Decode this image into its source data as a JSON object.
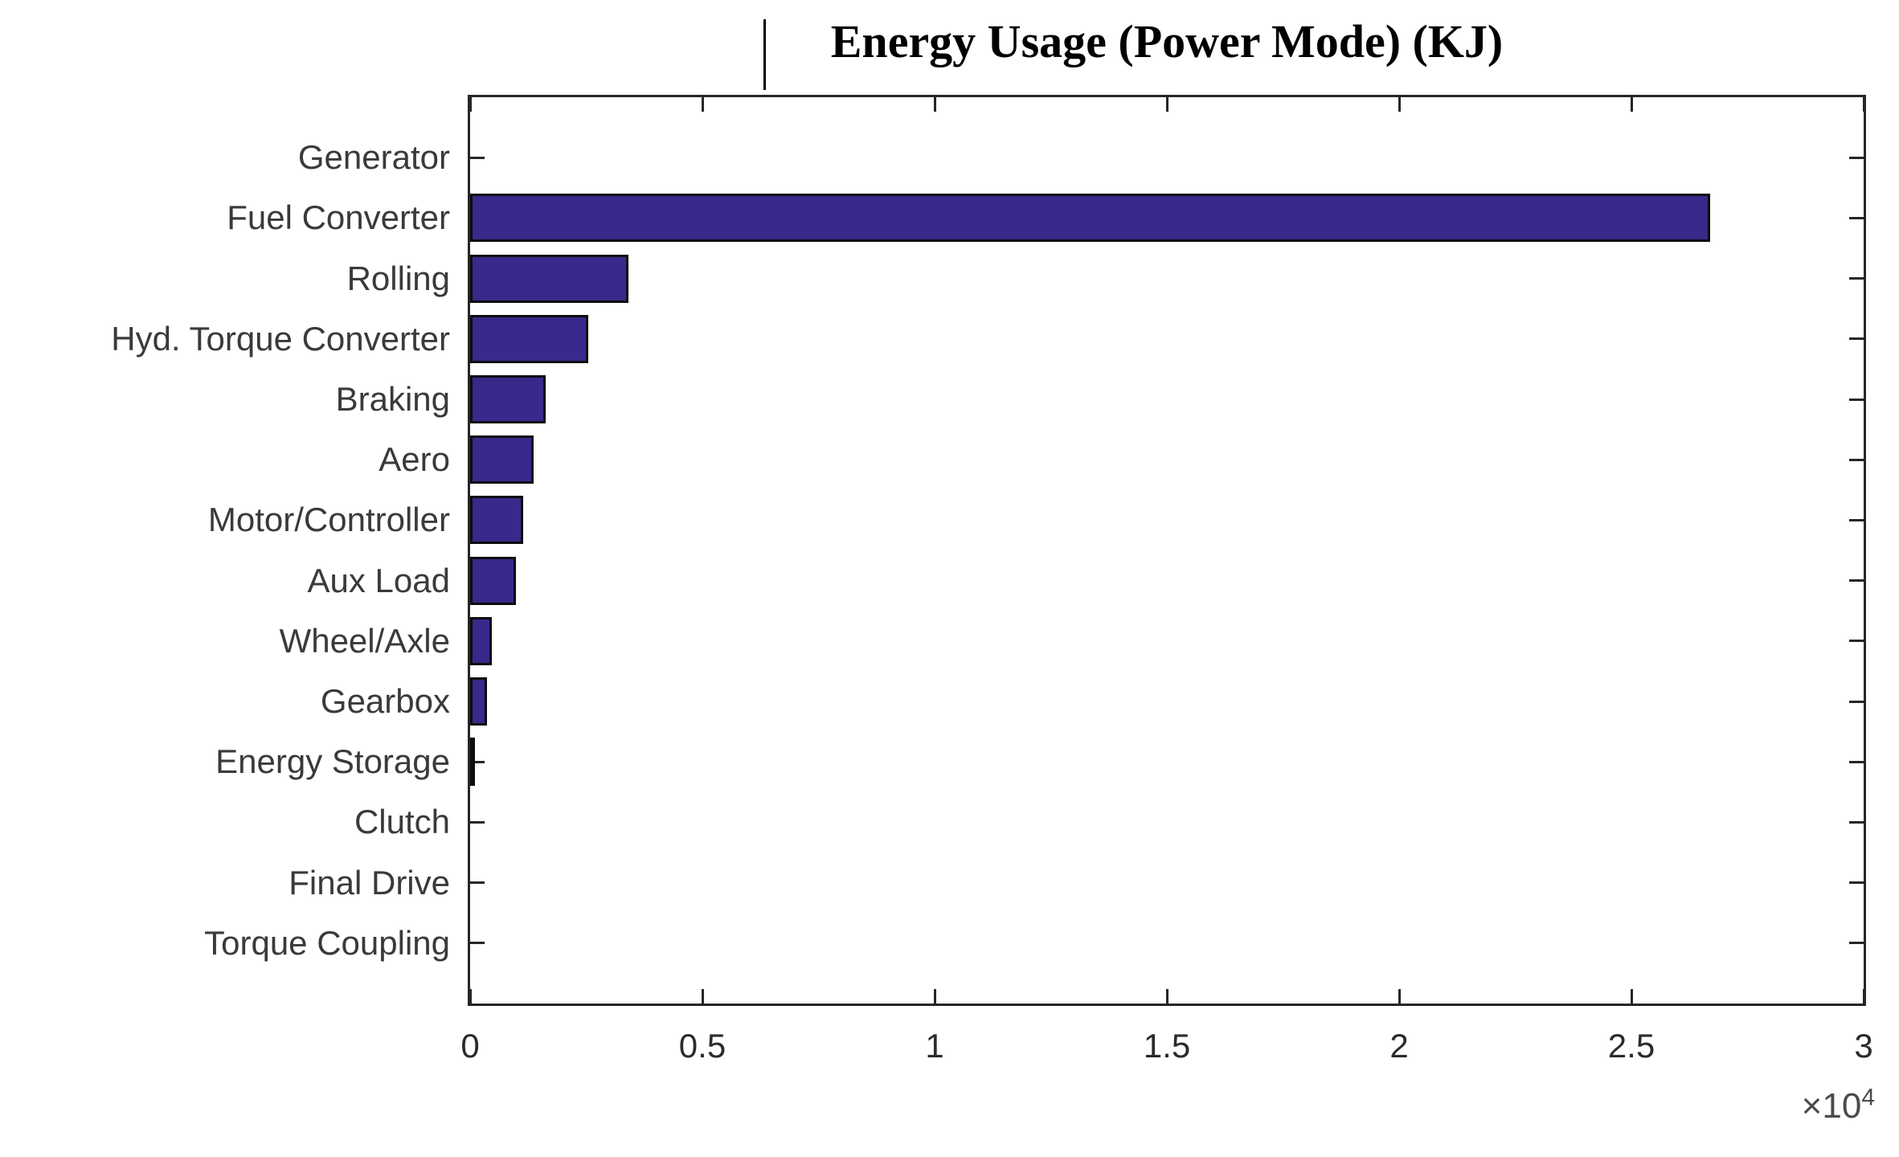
{
  "title": "Energy Usage (Power Mode) (KJ)",
  "chart_data": {
    "type": "bar",
    "orientation": "horizontal",
    "title": "Energy Usage (Power Mode) (KJ)",
    "categories_top_to_bottom": [
      "Generator",
      "Fuel Converter",
      "Rolling",
      "Hyd. Torque Converter",
      "Braking",
      "Aero",
      "Motor/Controller",
      "Aux Load",
      "Wheel/Axle",
      "Gearbox",
      "Energy Storage",
      "Clutch",
      "Final Drive",
      "Torque Coupling"
    ],
    "values_kj": [
      0,
      26700,
      3400,
      2550,
      1620,
      1360,
      1150,
      980,
      470,
      360,
      110,
      0,
      0,
      0
    ],
    "xlabel": "",
    "ylabel": "",
    "xlim": [
      0,
      30000
    ],
    "x_ticks": [
      0,
      5000,
      10000,
      15000,
      20000,
      25000,
      30000
    ],
    "x_tick_labels": [
      "0",
      "0.5",
      "1",
      "1.5",
      "2",
      "2.5",
      "3"
    ],
    "x_multiplier": {
      "base": "×10",
      "exp": "4"
    },
    "grid": false,
    "legend": null,
    "bar_color": "#38298a",
    "bar_edge_color": "#0d0d0d",
    "axis_color": "#262626",
    "title_has_edit_cursor": true
  }
}
